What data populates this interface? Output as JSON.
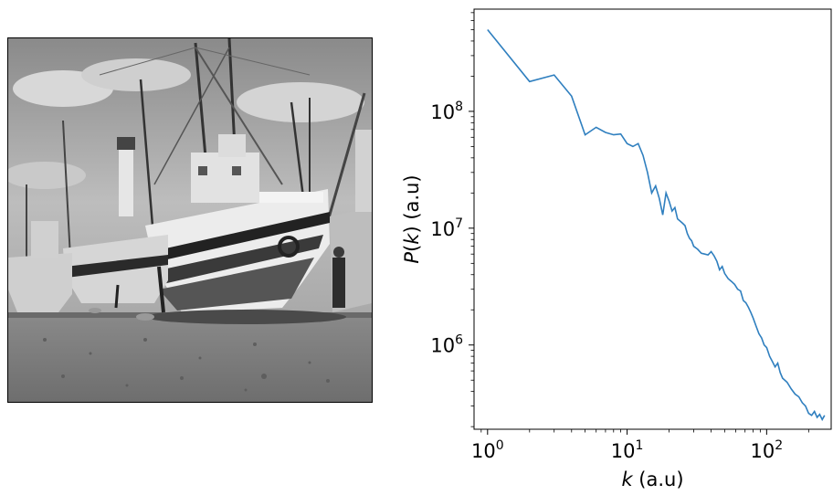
{
  "image_panel": {
    "description_icon": "grayscale-boats-photo-icon"
  },
  "chart_data": {
    "type": "line",
    "xscale": "log",
    "yscale": "log",
    "xlabel_var": "k",
    "xlabel_unit": " (a.u)",
    "ylabel_func": "P",
    "ylabel_arg": "k",
    "ylabel_unit": " (a.u)",
    "xlim": [
      0.8,
      290
    ],
    "ylim": [
      190000,
      750000000
    ],
    "x_ticks": [
      {
        "base": "10",
        "exp": "0",
        "value": 1
      },
      {
        "base": "10",
        "exp": "1",
        "value": 10
      },
      {
        "base": "10",
        "exp": "2",
        "value": 100
      }
    ],
    "y_ticks": [
      {
        "base": "10",
        "exp": "6",
        "value": 1000000
      },
      {
        "base": "10",
        "exp": "7",
        "value": 10000000
      },
      {
        "base": "10",
        "exp": "8",
        "value": 100000000
      }
    ],
    "grid": false,
    "line_color": "#2f7fbf",
    "series": [
      {
        "x": [
          1,
          2,
          3,
          4,
          5,
          6,
          7,
          8,
          9,
          10,
          11,
          12,
          13,
          14,
          15,
          16,
          17,
          18,
          19,
          20,
          21,
          22,
          23,
          24,
          25,
          26,
          27,
          28,
          29,
          30,
          32,
          34,
          36,
          38,
          40,
          42,
          44,
          46,
          48,
          50,
          53,
          56,
          59,
          62,
          65,
          68,
          71,
          74,
          77,
          80,
          84,
          88,
          92,
          96,
          100,
          105,
          110,
          115,
          120,
          125,
          130,
          140,
          150,
          160,
          170,
          180,
          190,
          200,
          210,
          220,
          230,
          240,
          250,
          260
        ],
        "y": [
          500000000,
          180000000,
          205000000,
          135000000,
          63000000,
          73000000,
          66000000,
          63000000,
          64000000,
          53000000,
          50000000,
          53000000,
          42000000,
          30000000,
          20000000,
          23000000,
          18000000,
          13000000,
          20000000,
          17000000,
          14000000,
          15000000,
          12000000,
          11500000,
          11000000,
          10500000,
          9000000,
          8200000,
          7800000,
          7000000,
          6600000,
          6100000,
          6000000,
          5900000,
          6300000,
          5800000,
          5200000,
          4400000,
          4700000,
          4100000,
          3700000,
          3500000,
          3300000,
          3000000,
          2900000,
          2400000,
          2300000,
          2100000,
          1900000,
          1700000,
          1450000,
          1250000,
          1150000,
          1000000,
          950000,
          800000,
          720000,
          650000,
          700000,
          580000,
          520000,
          480000,
          420000,
          380000,
          360000,
          320000,
          300000,
          260000,
          250000,
          270000,
          240000,
          255000,
          230000,
          250000
        ]
      }
    ]
  }
}
